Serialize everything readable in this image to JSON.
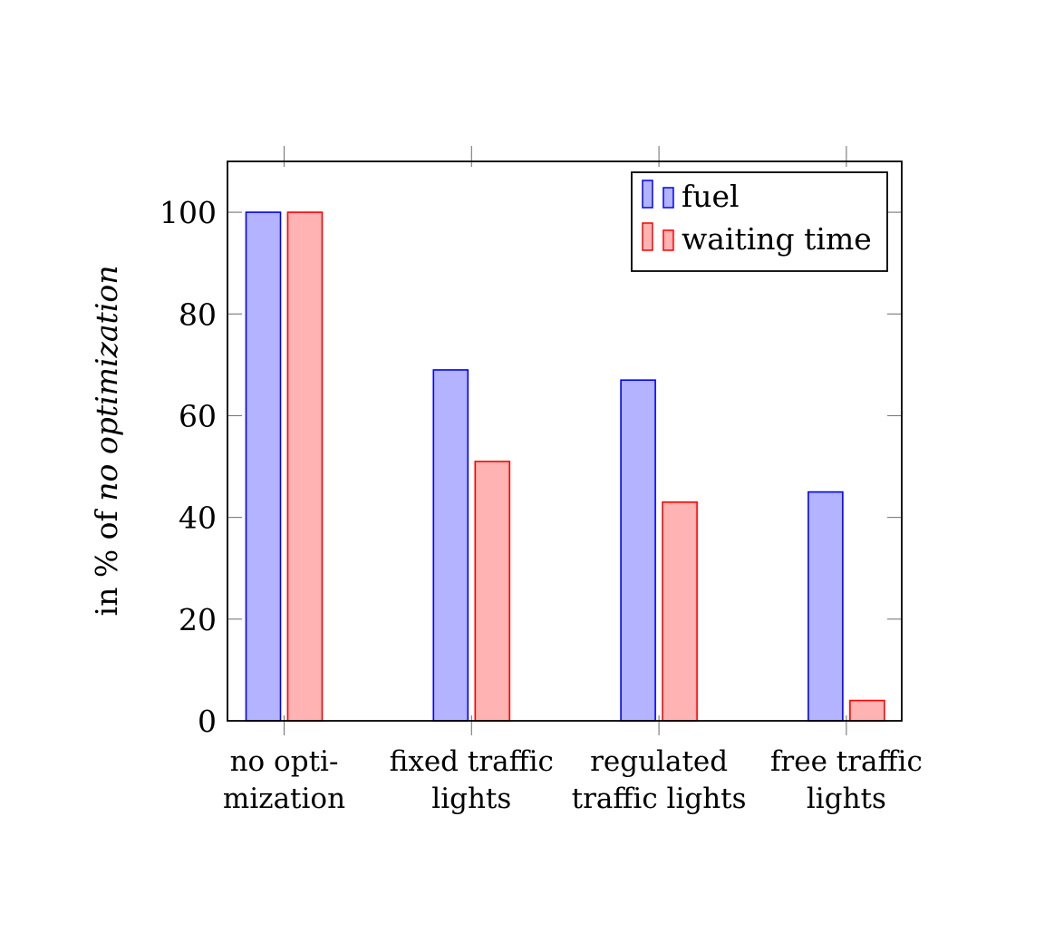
{
  "chart_data": {
    "type": "bar",
    "title": "",
    "xlabel": "",
    "ylabel_parts": [
      {
        "text": "in % of ",
        "italic": false
      },
      {
        "text": "no optimization",
        "italic": true
      }
    ],
    "categories": [
      [
        "no opti-",
        "mization"
      ],
      [
        "fixed traffic",
        "lights"
      ],
      [
        "regulated",
        "traffic lights"
      ],
      [
        "free traffic",
        "lights"
      ]
    ],
    "series": [
      {
        "name": "fuel",
        "values": [
          100,
          69,
          67,
          45
        ],
        "fill": "#b3b3ff",
        "stroke": "#0000ff"
      },
      {
        "name": "waiting time",
        "values": [
          100,
          51,
          43,
          4
        ],
        "fill": "#ffb3b3",
        "stroke": "#ff0000"
      }
    ],
    "ylim": [
      0,
      110
    ],
    "yticks": [
      0,
      20,
      40,
      60,
      80,
      100
    ],
    "grid": false,
    "legend_position": "top-right"
  }
}
